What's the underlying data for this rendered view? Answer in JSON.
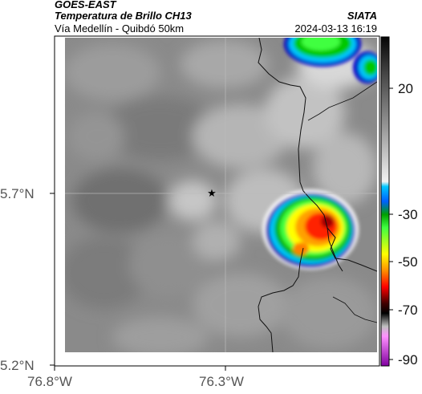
{
  "header": {
    "satellite": "GOES-EAST",
    "product": "Temperatura de Brillo CH13",
    "route": "Vía Medellín - Quibdó 50km",
    "organization": "SIATA",
    "timestamp": "2024-03-13 16:19"
  },
  "axes": {
    "lat_ticks": [
      "5.7°N",
      "5.2°N"
    ],
    "lon_ticks": [
      "76.8°W",
      "76.3°W"
    ]
  },
  "colorbar": {
    "labels": [
      "20",
      "-30",
      "-50",
      "-70",
      "-90"
    ],
    "colors": [
      "#000000",
      "#ffffff",
      "#00b4ff",
      "#00c800",
      "#ffff00",
      "#ff0000",
      "#000000",
      "#ff80ff",
      "#8000a0"
    ]
  },
  "map": {
    "marker": "star-icon",
    "storm_colors": [
      "#0000c8",
      "#00c8ff",
      "#00c800",
      "#ffff00",
      "#ff8c00",
      "#ff0000"
    ]
  }
}
